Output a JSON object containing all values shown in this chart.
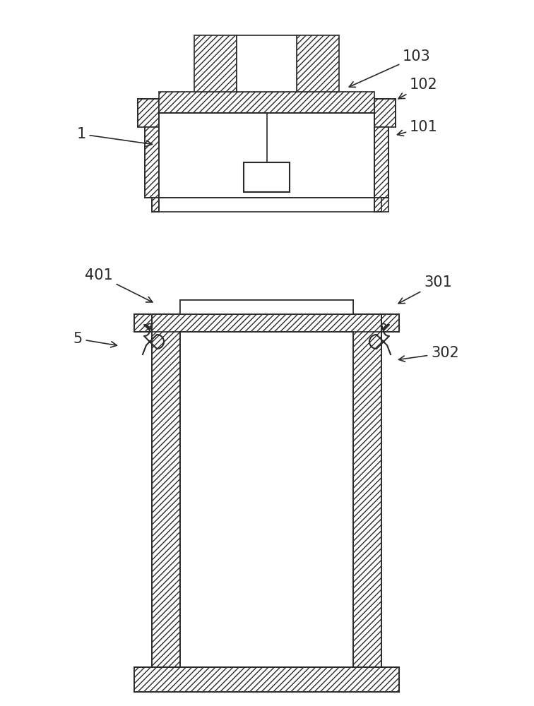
{
  "bg_color": "#ffffff",
  "line_color": "#2a2a2a",
  "lw": 1.2,
  "lw_thick": 1.5,
  "hatch": "////",
  "figsize": [
    7.56,
    10.0
  ],
  "dpi": 100
}
